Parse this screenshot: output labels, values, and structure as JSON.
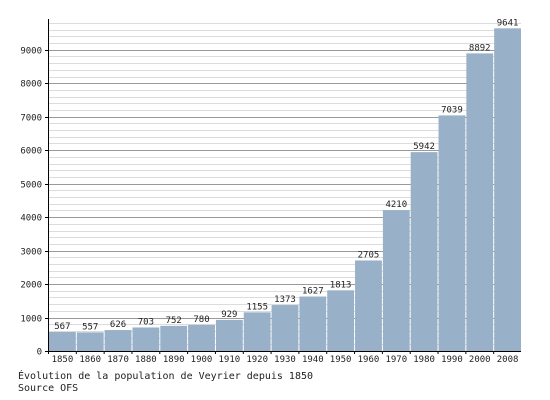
{
  "chart_data": {
    "type": "bar",
    "categories": [
      "1850",
      "1860",
      "1870",
      "1880",
      "1890",
      "1900",
      "1910",
      "1920",
      "1930",
      "1940",
      "1950",
      "1960",
      "1970",
      "1980",
      "1990",
      "2000",
      "2008"
    ],
    "values": [
      567,
      557,
      626,
      703,
      752,
      780,
      929,
      1155,
      1373,
      1627,
      1813,
      2705,
      4210,
      5942,
      7039,
      8892,
      9641
    ],
    "data_labels": [
      "567",
      "557",
      "626",
      "703",
      "752",
      "780",
      "929",
      "1155",
      "1373",
      "1627",
      "1813",
      "2705",
      "4210",
      "5942",
      "7039",
      "8892",
      "9641"
    ],
    "y_ticks": [
      0,
      1000,
      2000,
      3000,
      4000,
      5000,
      6000,
      7000,
      8000,
      9000
    ],
    "ylim": [
      0,
      9800
    ],
    "minor_grid_step": 200,
    "grid": true,
    "title": "",
    "xlabel": "",
    "ylabel": "",
    "colors": {
      "bar": "#98b0c8",
      "grid_major": "#9a9a9a",
      "grid_minor": "#dcdcdc",
      "axis": "#000000"
    }
  },
  "caption": {
    "title": "Évolution de la population de Veyrier depuis 1850",
    "source": "Source OFS"
  }
}
